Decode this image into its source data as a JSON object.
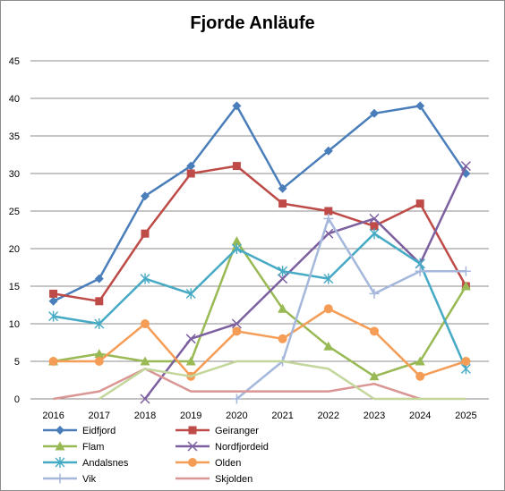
{
  "chart_data": {
    "type": "line",
    "title": "Fjorde Anläufe",
    "xlabel": "",
    "ylabel": "",
    "x": [
      "2016",
      "2017",
      "2018",
      "2019",
      "2020",
      "2021",
      "2022",
      "2023",
      "2024",
      "2025"
    ],
    "ylim": [
      0,
      45
    ],
    "yticks": [
      "0",
      "5",
      "10",
      "15",
      "20",
      "25",
      "30",
      "35",
      "40",
      "45"
    ],
    "grid": "horizontal",
    "legend_position": "bottom",
    "series": [
      {
        "name": "Eidfjord",
        "color": "#4a7ebb",
        "marker": "diamond",
        "values": [
          13,
          16,
          27,
          31,
          39,
          28,
          33,
          38,
          39,
          30
        ]
      },
      {
        "name": "Geiranger",
        "color": "#be4b48",
        "marker": "square",
        "values": [
          14,
          13,
          22,
          30,
          31,
          26,
          25,
          23,
          26,
          15
        ]
      },
      {
        "name": "Flam",
        "color": "#98b954",
        "marker": "triangle",
        "values": [
          5,
          6,
          5,
          5,
          21,
          12,
          7,
          3,
          5,
          15
        ]
      },
      {
        "name": "Nordfjordeid",
        "color": "#7d60a0",
        "marker": "x",
        "values": [
          null,
          null,
          0,
          8,
          10,
          16,
          22,
          24,
          18,
          31
        ]
      },
      {
        "name": "Andalsnes",
        "color": "#46aac5",
        "marker": "star",
        "values": [
          11,
          10,
          16,
          14,
          20,
          17,
          16,
          22,
          18,
          4
        ]
      },
      {
        "name": "Olden",
        "color": "#f59d56",
        "marker": "circle",
        "values": [
          5,
          5,
          10,
          3,
          9,
          8,
          12,
          9,
          3,
          5
        ]
      },
      {
        "name": "Vik",
        "color": "#a5b8dc",
        "marker": "plus",
        "values": [
          null,
          null,
          null,
          null,
          0,
          5,
          24,
          14,
          17,
          17
        ]
      },
      {
        "name": "Skjolden",
        "color": "#d99694",
        "marker": "none",
        "values": [
          0,
          1,
          4,
          1,
          1,
          1,
          1,
          2,
          0,
          null
        ]
      },
      {
        "name": "",
        "color": "#c3d69b",
        "marker": "none",
        "values": [
          null,
          0,
          4,
          3,
          5,
          5,
          4,
          0,
          0,
          0
        ]
      }
    ]
  }
}
